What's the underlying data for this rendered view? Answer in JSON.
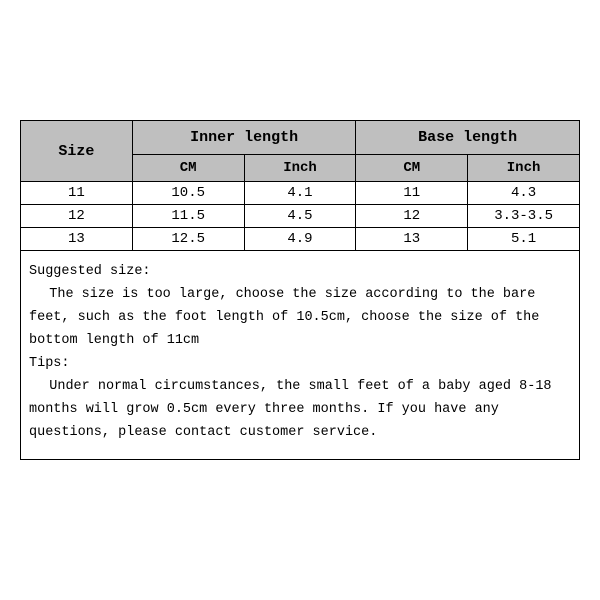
{
  "table": {
    "type": "table",
    "background_color": "#ffffff",
    "border_color": "#000000",
    "header_bg": "#bfbfbf",
    "font_family": "Courier New",
    "header_fontsize": 15,
    "cell_fontsize": 14,
    "columns": [
      "Size",
      "Inner length",
      "Base length"
    ],
    "sub_columns": [
      "CM",
      "Inch",
      "CM",
      "Inch"
    ],
    "rows": [
      [
        "11",
        "10.5",
        "4.1",
        "11",
        "4.3"
      ],
      [
        "12",
        "11.5",
        "4.5",
        "12",
        "3.3-3.5"
      ],
      [
        "13",
        "12.5",
        "4.9",
        "13",
        "5.1"
      ]
    ]
  },
  "notes": {
    "suggested_heading": "Suggested size:",
    "suggested_body": "The size is too large, choose the size according to the bare feet, such as the foot length of 10.5cm, choose the size of the bottom length of 11cm",
    "tips_heading": "Tips:",
    "tips_body": "Under normal circumstances, the small feet of a baby aged 8-18 months will grow 0.5cm every three months. If you have any questions, please contact customer service.",
    "fontsize": 13.5,
    "line_height": 1.7,
    "text_color": "#000000"
  }
}
